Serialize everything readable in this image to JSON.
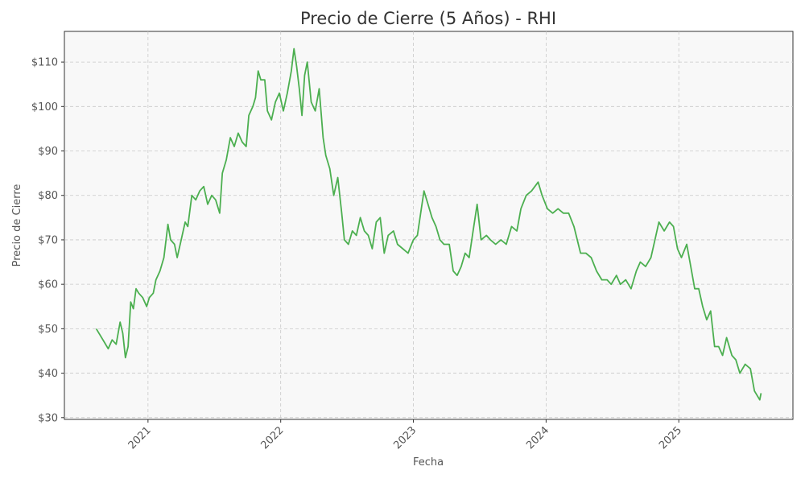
{
  "chart_data": {
    "type": "line",
    "title": "Precio de Cierre (5 Años) - RHI",
    "x_label": "Fecha",
    "y_label": "Precio de Cierre",
    "x": [
      2020.61,
      2020.64,
      2020.67,
      2020.7,
      2020.73,
      2020.76,
      2020.79,
      2020.81,
      2020.83,
      2020.85,
      2020.87,
      2020.89,
      2020.91,
      2020.93,
      2020.96,
      2020.99,
      2021.01,
      2021.04,
      2021.06,
      2021.09,
      2021.12,
      2021.15,
      2021.17,
      2021.2,
      2021.22,
      2021.25,
      2021.28,
      2021.3,
      2021.33,
      2021.36,
      2021.39,
      2021.42,
      2021.45,
      2021.48,
      2021.51,
      2021.54,
      2021.56,
      2021.59,
      2021.62,
      2021.65,
      2021.68,
      2021.71,
      2021.74,
      2021.76,
      2021.79,
      2021.81,
      2021.83,
      2021.85,
      2021.88,
      2021.9,
      2021.93,
      2021.96,
      2021.99,
      2022.02,
      2022.05,
      2022.08,
      2022.1,
      2022.12,
      2022.14,
      2022.16,
      2022.18,
      2022.2,
      2022.23,
      2022.26,
      2022.29,
      2022.32,
      2022.34,
      2022.37,
      2022.4,
      2022.43,
      2022.46,
      2022.48,
      2022.51,
      2022.54,
      2022.57,
      2022.6,
      2022.63,
      2022.66,
      2022.69,
      2022.72,
      2022.75,
      2022.78,
      2022.81,
      2022.85,
      2022.88,
      2022.92,
      2022.96,
      2023.0,
      2023.03,
      2023.06,
      2023.08,
      2023.11,
      2023.14,
      2023.17,
      2023.2,
      2023.23,
      2023.27,
      2023.3,
      2023.33,
      2023.36,
      2023.39,
      2023.42,
      2023.45,
      2023.48,
      2023.51,
      2023.55,
      2023.58,
      2023.62,
      2023.66,
      2023.7,
      2023.74,
      2023.78,
      2023.81,
      2023.85,
      2023.89,
      2023.94,
      2023.97,
      2024.01,
      2024.05,
      2024.09,
      2024.13,
      2024.17,
      2024.21,
      2024.26,
      2024.3,
      2024.34,
      2024.38,
      2024.42,
      2024.46,
      2024.49,
      2024.53,
      2024.56,
      2024.6,
      2024.64,
      2024.68,
      2024.71,
      2024.75,
      2024.79,
      2024.82,
      2024.85,
      2024.89,
      2024.93,
      2024.96,
      2024.99,
      2025.02,
      2025.06,
      2025.09,
      2025.12,
      2025.15,
      2025.18,
      2025.21,
      2025.24,
      2025.27,
      2025.3,
      2025.33,
      2025.36,
      2025.4,
      2025.43,
      2025.46,
      2025.5,
      2025.54,
      2025.57,
      2025.61,
      2025.62
    ],
    "series": [
      {
        "color": "#4caf50",
        "values": [
          50,
          48.5,
          47,
          45.5,
          47.5,
          46.5,
          51.5,
          49,
          43.5,
          46,
          56,
          54.5,
          59,
          58,
          57,
          55,
          57,
          58,
          61,
          63,
          66,
          73.5,
          70,
          69,
          66,
          70,
          74,
          73,
          80,
          79,
          81,
          82,
          78,
          80,
          79,
          76,
          85,
          88,
          93,
          91,
          94,
          92,
          91,
          98,
          100,
          102,
          108,
          106,
          106,
          99,
          97,
          101,
          103,
          99,
          103,
          108,
          113,
          109,
          104,
          98,
          107,
          110,
          101,
          99,
          104,
          93,
          89,
          86,
          80,
          84,
          76,
          70,
          69,
          72,
          71,
          75,
          72,
          71,
          68,
          74,
          75,
          67,
          71,
          72,
          69,
          68,
          67,
          70,
          71,
          77,
          81,
          78,
          75,
          73,
          70,
          69,
          69,
          63,
          62,
          64,
          67,
          66,
          72,
          78,
          70,
          71,
          70,
          69,
          70,
          69,
          73,
          72,
          77,
          80,
          81,
          83,
          80,
          77,
          76,
          77,
          76,
          76,
          73,
          67,
          67,
          66,
          63,
          61,
          61,
          60,
          62,
          60,
          61,
          59,
          63,
          65,
          64,
          66,
          70,
          74,
          72,
          74,
          73,
          68,
          66,
          69,
          64,
          59,
          59,
          55,
          52,
          54,
          46,
          46,
          44,
          48,
          44,
          43,
          40,
          42,
          41,
          36,
          34,
          35.5
        ]
      }
    ],
    "xlim": [
      2020.37,
      2025.86
    ],
    "xticks": [
      2021,
      2022,
      2023,
      2024,
      2025
    ],
    "ylim": [
      29.6,
      116.9
    ],
    "yticks": [
      {
        "value": 30,
        "label": "$30"
      },
      {
        "value": 40,
        "label": "$40"
      },
      {
        "value": 50,
        "label": "$50"
      },
      {
        "value": 60,
        "label": "$60"
      },
      {
        "value": 70,
        "label": "$70"
      },
      {
        "value": 80,
        "label": "$80"
      },
      {
        "value": 90,
        "label": "$90"
      },
      {
        "value": 100,
        "label": "$100"
      },
      {
        "value": 110,
        "label": "$110"
      }
    ],
    "grid": true
  }
}
